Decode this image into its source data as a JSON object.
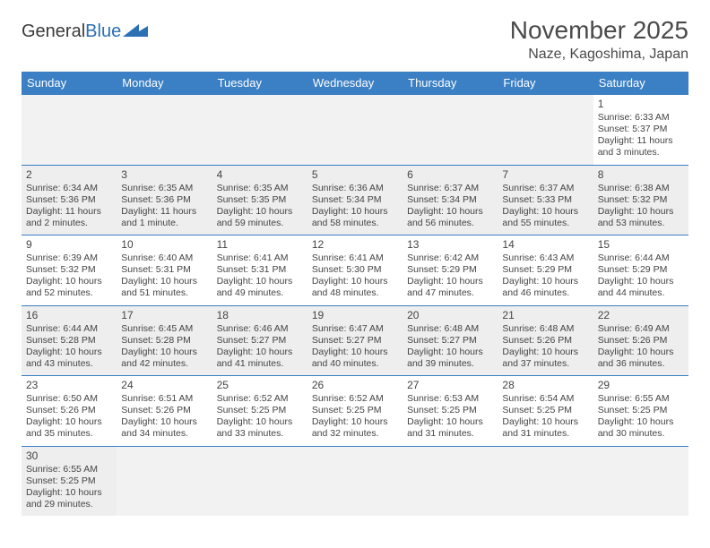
{
  "logo": {
    "word1": "General",
    "word2": "Blue"
  },
  "title": "November 2025",
  "location": "Naze, Kagoshima, Japan",
  "daynames": [
    "Sunday",
    "Monday",
    "Tuesday",
    "Wednesday",
    "Thursday",
    "Friday",
    "Saturday"
  ],
  "colors": {
    "header_bg": "#3b7fc4",
    "header_text": "#ffffff",
    "row_alt_bg": "#eeeeee",
    "border": "#3b7fc4",
    "text": "#444444"
  },
  "weeks": [
    [
      null,
      null,
      null,
      null,
      null,
      null,
      {
        "n": "1",
        "sr": "Sunrise: 6:33 AM",
        "ss": "Sunset: 5:37 PM",
        "d1": "Daylight: 11 hours",
        "d2": "and 3 minutes."
      }
    ],
    [
      {
        "n": "2",
        "sr": "Sunrise: 6:34 AM",
        "ss": "Sunset: 5:36 PM",
        "d1": "Daylight: 11 hours",
        "d2": "and 2 minutes."
      },
      {
        "n": "3",
        "sr": "Sunrise: 6:35 AM",
        "ss": "Sunset: 5:36 PM",
        "d1": "Daylight: 11 hours",
        "d2": "and 1 minute."
      },
      {
        "n": "4",
        "sr": "Sunrise: 6:35 AM",
        "ss": "Sunset: 5:35 PM",
        "d1": "Daylight: 10 hours",
        "d2": "and 59 minutes."
      },
      {
        "n": "5",
        "sr": "Sunrise: 6:36 AM",
        "ss": "Sunset: 5:34 PM",
        "d1": "Daylight: 10 hours",
        "d2": "and 58 minutes."
      },
      {
        "n": "6",
        "sr": "Sunrise: 6:37 AM",
        "ss": "Sunset: 5:34 PM",
        "d1": "Daylight: 10 hours",
        "d2": "and 56 minutes."
      },
      {
        "n": "7",
        "sr": "Sunrise: 6:37 AM",
        "ss": "Sunset: 5:33 PM",
        "d1": "Daylight: 10 hours",
        "d2": "and 55 minutes."
      },
      {
        "n": "8",
        "sr": "Sunrise: 6:38 AM",
        "ss": "Sunset: 5:32 PM",
        "d1": "Daylight: 10 hours",
        "d2": "and 53 minutes."
      }
    ],
    [
      {
        "n": "9",
        "sr": "Sunrise: 6:39 AM",
        "ss": "Sunset: 5:32 PM",
        "d1": "Daylight: 10 hours",
        "d2": "and 52 minutes."
      },
      {
        "n": "10",
        "sr": "Sunrise: 6:40 AM",
        "ss": "Sunset: 5:31 PM",
        "d1": "Daylight: 10 hours",
        "d2": "and 51 minutes."
      },
      {
        "n": "11",
        "sr": "Sunrise: 6:41 AM",
        "ss": "Sunset: 5:31 PM",
        "d1": "Daylight: 10 hours",
        "d2": "and 49 minutes."
      },
      {
        "n": "12",
        "sr": "Sunrise: 6:41 AM",
        "ss": "Sunset: 5:30 PM",
        "d1": "Daylight: 10 hours",
        "d2": "and 48 minutes."
      },
      {
        "n": "13",
        "sr": "Sunrise: 6:42 AM",
        "ss": "Sunset: 5:29 PM",
        "d1": "Daylight: 10 hours",
        "d2": "and 47 minutes."
      },
      {
        "n": "14",
        "sr": "Sunrise: 6:43 AM",
        "ss": "Sunset: 5:29 PM",
        "d1": "Daylight: 10 hours",
        "d2": "and 46 minutes."
      },
      {
        "n": "15",
        "sr": "Sunrise: 6:44 AM",
        "ss": "Sunset: 5:29 PM",
        "d1": "Daylight: 10 hours",
        "d2": "and 44 minutes."
      }
    ],
    [
      {
        "n": "16",
        "sr": "Sunrise: 6:44 AM",
        "ss": "Sunset: 5:28 PM",
        "d1": "Daylight: 10 hours",
        "d2": "and 43 minutes."
      },
      {
        "n": "17",
        "sr": "Sunrise: 6:45 AM",
        "ss": "Sunset: 5:28 PM",
        "d1": "Daylight: 10 hours",
        "d2": "and 42 minutes."
      },
      {
        "n": "18",
        "sr": "Sunrise: 6:46 AM",
        "ss": "Sunset: 5:27 PM",
        "d1": "Daylight: 10 hours",
        "d2": "and 41 minutes."
      },
      {
        "n": "19",
        "sr": "Sunrise: 6:47 AM",
        "ss": "Sunset: 5:27 PM",
        "d1": "Daylight: 10 hours",
        "d2": "and 40 minutes."
      },
      {
        "n": "20",
        "sr": "Sunrise: 6:48 AM",
        "ss": "Sunset: 5:27 PM",
        "d1": "Daylight: 10 hours",
        "d2": "and 39 minutes."
      },
      {
        "n": "21",
        "sr": "Sunrise: 6:48 AM",
        "ss": "Sunset: 5:26 PM",
        "d1": "Daylight: 10 hours",
        "d2": "and 37 minutes."
      },
      {
        "n": "22",
        "sr": "Sunrise: 6:49 AM",
        "ss": "Sunset: 5:26 PM",
        "d1": "Daylight: 10 hours",
        "d2": "and 36 minutes."
      }
    ],
    [
      {
        "n": "23",
        "sr": "Sunrise: 6:50 AM",
        "ss": "Sunset: 5:26 PM",
        "d1": "Daylight: 10 hours",
        "d2": "and 35 minutes."
      },
      {
        "n": "24",
        "sr": "Sunrise: 6:51 AM",
        "ss": "Sunset: 5:26 PM",
        "d1": "Daylight: 10 hours",
        "d2": "and 34 minutes."
      },
      {
        "n": "25",
        "sr": "Sunrise: 6:52 AM",
        "ss": "Sunset: 5:25 PM",
        "d1": "Daylight: 10 hours",
        "d2": "and 33 minutes."
      },
      {
        "n": "26",
        "sr": "Sunrise: 6:52 AM",
        "ss": "Sunset: 5:25 PM",
        "d1": "Daylight: 10 hours",
        "d2": "and 32 minutes."
      },
      {
        "n": "27",
        "sr": "Sunrise: 6:53 AM",
        "ss": "Sunset: 5:25 PM",
        "d1": "Daylight: 10 hours",
        "d2": "and 31 minutes."
      },
      {
        "n": "28",
        "sr": "Sunrise: 6:54 AM",
        "ss": "Sunset: 5:25 PM",
        "d1": "Daylight: 10 hours",
        "d2": "and 31 minutes."
      },
      {
        "n": "29",
        "sr": "Sunrise: 6:55 AM",
        "ss": "Sunset: 5:25 PM",
        "d1": "Daylight: 10 hours",
        "d2": "and 30 minutes."
      }
    ],
    [
      {
        "n": "30",
        "sr": "Sunrise: 6:55 AM",
        "ss": "Sunset: 5:25 PM",
        "d1": "Daylight: 10 hours",
        "d2": "and 29 minutes."
      },
      null,
      null,
      null,
      null,
      null,
      null
    ]
  ]
}
